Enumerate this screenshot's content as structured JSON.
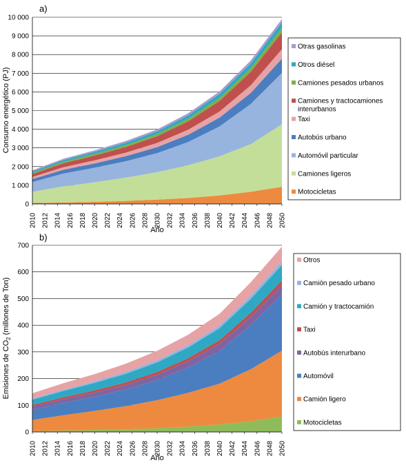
{
  "chart_data": [
    {
      "type": "area",
      "stacked": true,
      "panel_label": "a)",
      "xlabel": "Año",
      "ylabel": "Consumo energético (PJ)",
      "ylim": [
        0,
        10000
      ],
      "y_ticks": [
        "0",
        "1 000",
        "2 000",
        "3 000",
        "4 000",
        "5 000",
        "6 000",
        "7 000",
        "8 000",
        "9 000",
        "10 000"
      ],
      "x_ticks": [
        "2010",
        "2012",
        "2014",
        "2016",
        "2018",
        "2020",
        "2022",
        "2024",
        "2026",
        "2028",
        "2030",
        "2032",
        "2034",
        "2036",
        "2038",
        "2040",
        "2042",
        "2044",
        "2046",
        "2048",
        "2050"
      ],
      "grid": true,
      "legend_position": "right",
      "x": [
        2010,
        2015,
        2020,
        2025,
        2030,
        2035,
        2040,
        2045,
        2050
      ],
      "series": [
        {
          "name": "Motocicletas",
          "color": "#EE8A3F",
          "values": [
            50,
            80,
            110,
            160,
            230,
            320,
            450,
            650,
            920
          ]
        },
        {
          "name": "Camiones ligeros",
          "color": "#C3DE98",
          "values": [
            600,
            860,
            1050,
            1250,
            1470,
            1750,
            2100,
            2550,
            3350
          ]
        },
        {
          "name": "Automóvil particular",
          "color": "#97B4DE",
          "values": [
            520,
            690,
            780,
            880,
            1020,
            1250,
            1600,
            2150,
            2750
          ]
        },
        {
          "name": "Autobús urbano",
          "color": "#4A7EC0",
          "values": [
            160,
            200,
            230,
            270,
            320,
            390,
            470,
            590,
            760
          ]
        },
        {
          "name": "Taxi",
          "color": "#E6A3A5",
          "values": [
            110,
            140,
            165,
            190,
            225,
            270,
            330,
            410,
            510
          ]
        },
        {
          "name": "Camiones y tractocamiones interurbanos",
          "color": "#C0504D",
          "values": [
            160,
            210,
            255,
            300,
            360,
            450,
            560,
            720,
            900
          ]
        },
        {
          "name": "Camiones pesados urbanos",
          "color": "#7DAF4B",
          "values": [
            60,
            75,
            90,
            105,
            120,
            145,
            175,
            210,
            250
          ]
        },
        {
          "name": "Otros diésel",
          "color": "#2FA8C4",
          "values": [
            80,
            95,
            110,
            125,
            145,
            170,
            200,
            240,
            290
          ]
        },
        {
          "name": "Otras gasolinas",
          "color": "#A89CCB",
          "values": [
            60,
            70,
            80,
            90,
            100,
            115,
            135,
            160,
            170
          ]
        }
      ]
    },
    {
      "type": "area",
      "stacked": true,
      "panel_label": "b)",
      "xlabel": "Año",
      "ylabel": "Emisiones de CO",
      "ylabel_sub": "2",
      "ylabel_tail": " (millones de Ton)",
      "ylim": [
        0,
        700
      ],
      "y_ticks": [
        "0",
        "100",
        "200",
        "300",
        "400",
        "500",
        "600",
        "700"
      ],
      "x_ticks": [
        "2010",
        "2012",
        "2014",
        "2016",
        "2018",
        "2020",
        "2022",
        "2024",
        "2026",
        "2028",
        "2030",
        "2032",
        "2034",
        "2036",
        "2038",
        "2040",
        "2042",
        "2044",
        "2046",
        "2048",
        "2050"
      ],
      "grid": true,
      "legend_position": "right",
      "x": [
        2010,
        2015,
        2020,
        2025,
        2030,
        2035,
        2040,
        2045,
        2050
      ],
      "series": [
        {
          "name": "Motocicletas",
          "color": "#8FBC5A",
          "values": [
            3,
            5,
            7,
            10,
            14,
            20,
            28,
            40,
            58
          ]
        },
        {
          "name": "Camión ligero",
          "color": "#EE8A3F",
          "values": [
            42,
            58,
            72,
            87,
            105,
            127,
            153,
            195,
            247
          ]
        },
        {
          "name": "Automóvil",
          "color": "#4A7EC0",
          "values": [
            38,
            46,
            53,
            62,
            75,
            95,
            122,
            165,
            210
          ]
        },
        {
          "name": "Autobús interurbano",
          "color": "#8064A2",
          "values": [
            12,
            14,
            16,
            18,
            21,
            24,
            28,
            32,
            36
          ]
        },
        {
          "name": "Taxi",
          "color": "#C0504D",
          "values": [
            6,
            7,
            8,
            9,
            10,
            11,
            13,
            15,
            17
          ]
        },
        {
          "name": "Camión y tractocamión",
          "color": "#2FA8C4",
          "values": [
            20,
            24,
            28,
            32,
            36,
            40,
            45,
            52,
            58
          ]
        },
        {
          "name": "Camión pesado urbano",
          "color": "#93B4E0",
          "values": [
            4,
            5,
            6,
            7,
            8,
            9,
            10,
            12,
            14
          ]
        },
        {
          "name": "Otros",
          "color": "#E6A3A5",
          "values": [
            20,
            24,
            27,
            31,
            35,
            39,
            44,
            50,
            55
          ]
        }
      ]
    }
  ]
}
